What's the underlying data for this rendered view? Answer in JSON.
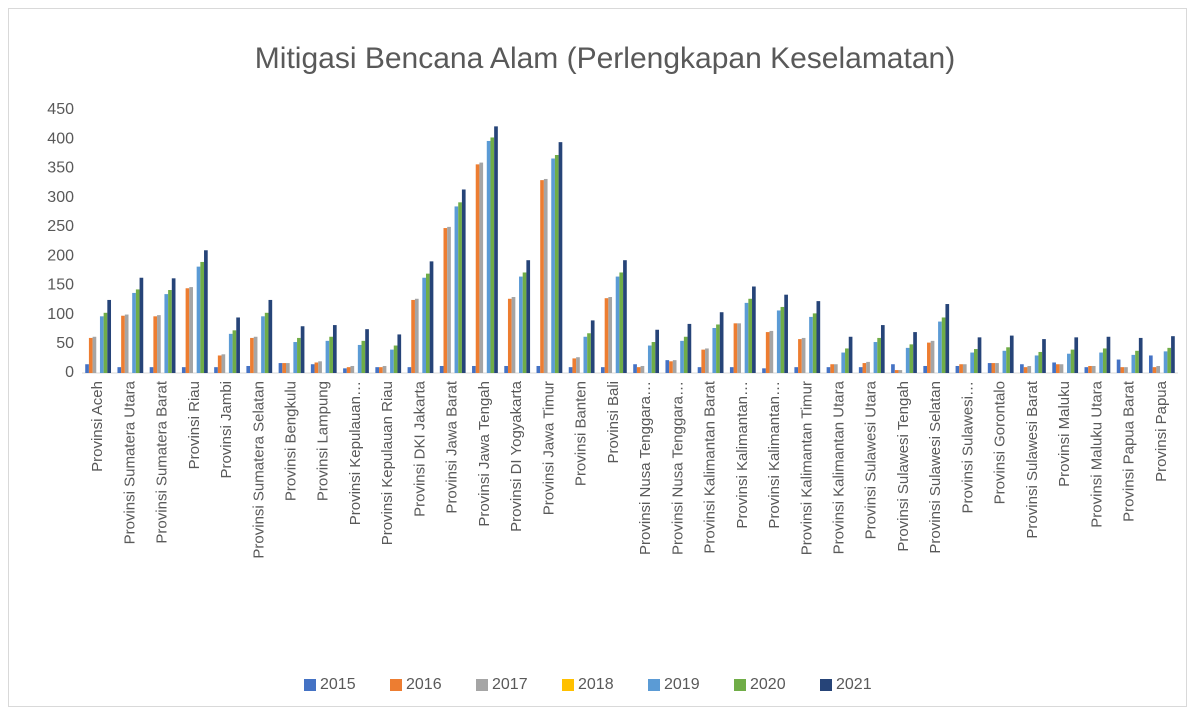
{
  "chart_data": {
    "type": "bar",
    "title": "Mitigasi Bencana Alam (Perlengkapan Keselamatan)",
    "categories": [
      "Provinsi Aceh",
      "Provinsi Sumatera Utara",
      "Provinsi Sumatera Barat",
      "Provinsi Riau",
      "Provinsi Jambi",
      "Provinsi Sumatera Selatan",
      "Provinsi Bengkulu",
      "Provinsi Lampung",
      "Provinsi Kepulauan…",
      "Provinsi Kepulauan Riau",
      "Provinsi DKI Jakarta",
      "Provinsi Jawa Barat",
      "Provinsi Jawa Tengah",
      "Provinsi DI Yogyakarta",
      "Provinsi Jawa Timur",
      "Provinsi Banten",
      "Provinsi Bali",
      "Provinsi Nusa Tenggara…",
      "Provinsi Nusa Tenggara…",
      "Provinsi Kalimantan Barat",
      "Provinsi Kalimantan…",
      "Provinsi Kalimantan…",
      "Provinsi Kalimantan Timur",
      "Provinsi Kalimantan Utara",
      "Provinsi Sulawesi Utara",
      "Provinsi Sulawesi Tengah",
      "Provinsi Sulawesi Selatan",
      "Provinsi Sulawesi…",
      "Provinsi Gorontalo",
      "Provinsi Sulawesi Barat",
      "Provinsi Maluku",
      "Provinsi Maluku Utara",
      "Provinsi Papua Barat",
      "Provinsi Papua"
    ],
    "series": [
      {
        "name": "2015",
        "color": "#4472c4",
        "values": [
          15,
          10,
          10,
          10,
          10,
          12,
          17,
          15,
          8,
          10,
          10,
          12,
          12,
          12,
          12,
          10,
          10,
          15,
          22,
          10,
          10,
          8,
          10,
          10,
          10,
          15,
          12,
          12,
          17,
          15,
          18,
          10,
          23,
          30
        ]
      },
      {
        "name": "2016",
        "color": "#ed7d31",
        "values": [
          60,
          98,
          97,
          145,
          30,
          60,
          17,
          18,
          10,
          10,
          125,
          248,
          357,
          127,
          330,
          25,
          128,
          10,
          20,
          40,
          85,
          70,
          58,
          15,
          17,
          5,
          52,
          15,
          17,
          10,
          15,
          12,
          10,
          10
        ]
      },
      {
        "name": "2017",
        "color": "#a5a5a5",
        "values": [
          62,
          100,
          99,
          147,
          32,
          62,
          17,
          20,
          12,
          12,
          127,
          250,
          360,
          130,
          332,
          27,
          130,
          12,
          22,
          42,
          85,
          72,
          60,
          15,
          19,
          5,
          55,
          15,
          17,
          12,
          15,
          12,
          10,
          12
        ]
      },
      {
        "name": "2018",
        "color": "#ffc000",
        "values": [
          0,
          0,
          0,
          0,
          0,
          0,
          0,
          0,
          0,
          0,
          0,
          0,
          0,
          0,
          0,
          0,
          0,
          0,
          0,
          0,
          0,
          0,
          0,
          0,
          0,
          0,
          0,
          0,
          0,
          0,
          0,
          0,
          0,
          0
        ]
      },
      {
        "name": "2019",
        "color": "#5b9bd5",
        "values": [
          97,
          137,
          135,
          182,
          67,
          97,
          53,
          55,
          48,
          40,
          163,
          285,
          397,
          165,
          367,
          62,
          165,
          47,
          55,
          77,
          120,
          107,
          96,
          35,
          53,
          43,
          88,
          35,
          38,
          30,
          33,
          35,
          31,
          37
        ]
      },
      {
        "name": "2020",
        "color": "#70ad47",
        "values": [
          103,
          143,
          142,
          190,
          73,
          103,
          60,
          62,
          55,
          47,
          170,
          292,
          403,
          172,
          373,
          68,
          172,
          53,
          62,
          83,
          127,
          113,
          102,
          42,
          60,
          49,
          95,
          41,
          44,
          36,
          40,
          42,
          38,
          43
        ]
      },
      {
        "name": "2021",
        "color": "#264478",
        "values": [
          125,
          163,
          162,
          210,
          95,
          125,
          80,
          82,
          75,
          66,
          191,
          314,
          422,
          193,
          395,
          90,
          193,
          74,
          84,
          104,
          148,
          134,
          123,
          62,
          82,
          70,
          118,
          61,
          64,
          58,
          61,
          62,
          60,
          63
        ]
      }
    ],
    "ylim": [
      0,
      450
    ],
    "yticks": [
      0,
      50,
      100,
      150,
      200,
      250,
      300,
      350,
      400,
      450
    ],
    "grid": false,
    "legend": "bottom"
  }
}
